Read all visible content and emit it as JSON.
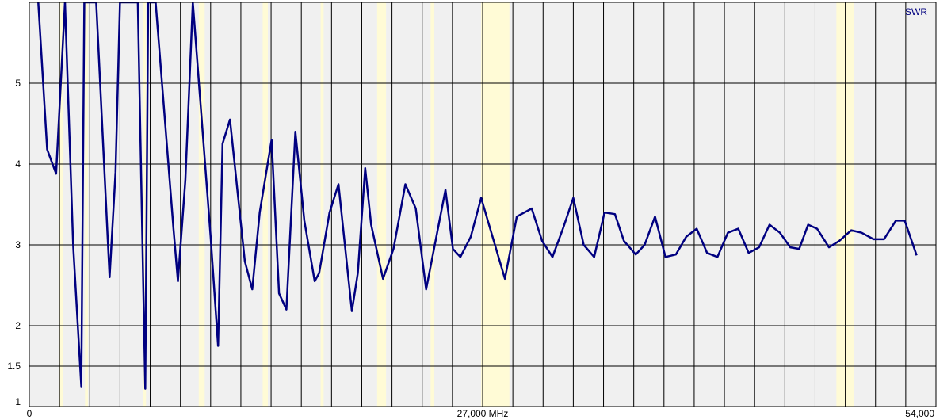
{
  "chart_data": {
    "type": "line",
    "title": "",
    "xlabel": "",
    "ylabel": "",
    "xlim": [
      0,
      54000
    ],
    "ylim": [
      1,
      6
    ],
    "grid": true,
    "x_ticks": [
      {
        "value": 0,
        "label": "0"
      },
      {
        "value": 27000,
        "label": "27,000 MHz"
      },
      {
        "value": 54000,
        "label": "54,000"
      }
    ],
    "y_ticks": [
      {
        "value": 1,
        "label": "1"
      },
      {
        "value": 1.5,
        "label": "1.5"
      },
      {
        "value": 2,
        "label": "2"
      },
      {
        "value": 3,
        "label": "3"
      },
      {
        "value": 4,
        "label": "4"
      },
      {
        "value": 5,
        "label": "5"
      }
    ],
    "x_grid_count": 30,
    "plot_background": "#f0f0f0",
    "band_color": "#fffbd6",
    "line_color": "#000080",
    "highlight_bands": [
      [
        2050,
        2250
      ],
      [
        3750,
        3950
      ],
      [
        7650,
        7850
      ],
      [
        11400,
        11800
      ],
      [
        15700,
        16050
      ],
      [
        19600,
        19800
      ],
      [
        23400,
        24000
      ],
      [
        27000,
        27250
      ],
      [
        30400,
        32300
      ],
      [
        54300,
        55500
      ]
    ],
    "series": [
      {
        "name": "SWR",
        "x": [
          600,
          1200,
          1800,
          2400,
          2950,
          3500,
          3700,
          4100,
          4500,
          5400,
          5800,
          6100,
          6500,
          7000,
          7300,
          7800,
          8000,
          8500,
          9700,
          10000,
          10500,
          11000,
          12200,
          12700,
          13000,
          13500,
          14500,
          15000,
          15500,
          16300,
          16800,
          17300,
          17900,
          18500,
          19200,
          19500,
          20200,
          20800,
          21700,
          22100,
          22600,
          23000,
          23800,
          24500,
          25300,
          26000,
          26700,
          27300,
          28000,
          28500,
          29000,
          29700,
          30400,
          31200,
          32000,
          32800,
          33800,
          34500,
          35200,
          35900,
          36600,
          37300,
          38000,
          38700,
          39400,
          40000,
          40800,
          41400,
          42100,
          42800,
          43500,
          44200,
          44900,
          45600,
          46300,
          47000,
          47700,
          48400,
          49100,
          49800,
          50500,
          51200,
          51800,
          52400,
          53000,
          53800,
          54500,
          55300,
          56000,
          56800,
          57500,
          58300,
          58900,
          59700
        ],
        "values": [
          6.0,
          4.18,
          3.88,
          6.0,
          3.0,
          1.25,
          6.0,
          6.0,
          6.0,
          2.6,
          3.9,
          6.0,
          6.0,
          6.0,
          6.0,
          1.22,
          6.0,
          6.0,
          3.2,
          2.55,
          3.8,
          6.0,
          3.1,
          1.75,
          4.25,
          4.55,
          2.8,
          2.45,
          3.4,
          4.3,
          2.4,
          2.2,
          4.4,
          3.3,
          2.55,
          2.65,
          3.4,
          3.75,
          2.18,
          2.65,
          3.95,
          3.25,
          2.58,
          2.95,
          3.75,
          3.45,
          2.45,
          3.02,
          3.68,
          2.95,
          2.85,
          3.1,
          3.58,
          3.08,
          2.58,
          3.35,
          3.45,
          3.05,
          2.85,
          3.2,
          3.58,
          3.0,
          2.85,
          3.4,
          3.38,
          3.05,
          2.88,
          3.0,
          3.35,
          2.85,
          2.88,
          3.1,
          3.2,
          2.9,
          2.85,
          3.15,
          3.2,
          2.9,
          2.97,
          3.25,
          3.15,
          2.97,
          2.95,
          3.25,
          3.2,
          2.97,
          3.05,
          3.18,
          3.15,
          3.07,
          3.07,
          3.3,
          3.3,
          2.87
        ]
      }
    ]
  }
}
